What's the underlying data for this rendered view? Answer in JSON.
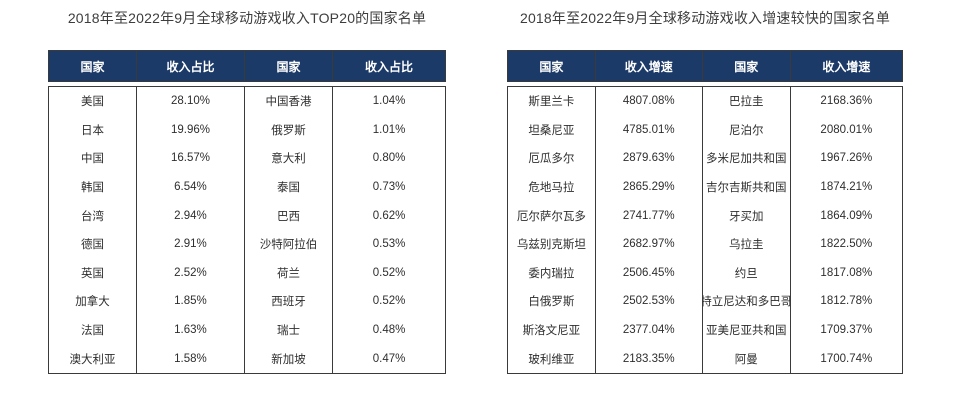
{
  "colors": {
    "header_bg": "#1c3a68",
    "header_text": "#ffffff",
    "body_text": "#2e2e2e",
    "border": "#3a3a3a",
    "title_text": "#3d3d3d",
    "page_bg": "#ffffff"
  },
  "left_table": {
    "title": "2018年至2022年9月全球移动游戏收入TOP20的国家名单",
    "headers": [
      "国家",
      "收入占比",
      "国家",
      "收入占比"
    ],
    "rows": [
      [
        "美国",
        "28.10%",
        "中国香港",
        "1.04%"
      ],
      [
        "日本",
        "19.96%",
        "俄罗斯",
        "1.01%"
      ],
      [
        "中国",
        "16.57%",
        "意大利",
        "0.80%"
      ],
      [
        "韩国",
        "6.54%",
        "泰国",
        "0.73%"
      ],
      [
        "台湾",
        "2.94%",
        "巴西",
        "0.62%"
      ],
      [
        "德国",
        "2.91%",
        "沙特阿拉伯",
        "0.53%"
      ],
      [
        "英国",
        "2.52%",
        "荷兰",
        "0.52%"
      ],
      [
        "加拿大",
        "1.85%",
        "西班牙",
        "0.52%"
      ],
      [
        "法国",
        "1.63%",
        "瑞士",
        "0.48%"
      ],
      [
        "澳大利亚",
        "1.58%",
        "新加坡",
        "0.47%"
      ]
    ]
  },
  "right_table": {
    "title": "2018年至2022年9月全球移动游戏收入增速较快的国家名单",
    "headers": [
      "国家",
      "收入增速",
      "国家",
      "收入增速"
    ],
    "rows": [
      [
        "斯里兰卡",
        "4807.08%",
        "巴拉圭",
        "2168.36%"
      ],
      [
        "坦桑尼亚",
        "4785.01%",
        "尼泊尔",
        "2080.01%"
      ],
      [
        "厄瓜多尔",
        "2879.63%",
        "多米尼加共和国",
        "1967.26%"
      ],
      [
        "危地马拉",
        "2865.29%",
        "吉尔吉斯共和国",
        "1874.21%"
      ],
      [
        "厄尔萨尔瓦多",
        "2741.77%",
        "牙买加",
        "1864.09%"
      ],
      [
        "乌兹别克斯坦",
        "2682.97%",
        "乌拉圭",
        "1822.50%"
      ],
      [
        "委内瑞拉",
        "2506.45%",
        "约旦",
        "1817.08%"
      ],
      [
        "白俄罗斯",
        "2502.53%",
        "特立尼达和多巴哥",
        "1812.78%"
      ],
      [
        "斯洛文尼亚",
        "2377.04%",
        "亚美尼亚共和国",
        "1709.37%"
      ],
      [
        "玻利维亚",
        "2183.35%",
        "阿曼",
        "1700.74%"
      ]
    ]
  },
  "chart_data": [
    {
      "type": "table",
      "title": "2018年至2022年9月全球移动游戏收入TOP20的国家名单",
      "columns": [
        "国家",
        "收入占比",
        "国家",
        "收入占比"
      ],
      "rows": [
        [
          "美国",
          "28.10%",
          "中国香港",
          "1.04%"
        ],
        [
          "日本",
          "19.96%",
          "俄罗斯",
          "1.01%"
        ],
        [
          "中国",
          "16.57%",
          "意大利",
          "0.80%"
        ],
        [
          "韩国",
          "6.54%",
          "泰国",
          "0.73%"
        ],
        [
          "台湾",
          "2.94%",
          "巴西",
          "0.62%"
        ],
        [
          "德国",
          "2.91%",
          "沙特阿拉伯",
          "0.53%"
        ],
        [
          "英国",
          "2.52%",
          "荷兰",
          "0.52%"
        ],
        [
          "加拿大",
          "1.85%",
          "西班牙",
          "0.52%"
        ],
        [
          "法国",
          "1.63%",
          "瑞士",
          "0.48%"
        ],
        [
          "澳大利亚",
          "1.58%",
          "新加坡",
          "0.47%"
        ]
      ]
    },
    {
      "type": "table",
      "title": "2018年至2022年9月全球移动游戏收入增速较快的国家名单",
      "columns": [
        "国家",
        "收入增速",
        "国家",
        "收入增速"
      ],
      "rows": [
        [
          "斯里兰卡",
          "4807.08%",
          "巴拉圭",
          "2168.36%"
        ],
        [
          "坦桑尼亚",
          "4785.01%",
          "尼泊尔",
          "2080.01%"
        ],
        [
          "厄瓜多尔",
          "2879.63%",
          "多米尼加共和国",
          "1967.26%"
        ],
        [
          "危地马拉",
          "2865.29%",
          "吉尔吉斯共和国",
          "1874.21%"
        ],
        [
          "厄尔萨尔瓦多",
          "2741.77%",
          "牙买加",
          "1864.09%"
        ],
        [
          "乌兹别克斯坦",
          "2682.97%",
          "乌拉圭",
          "1822.50%"
        ],
        [
          "委内瑞拉",
          "2506.45%",
          "约旦",
          "1817.08%"
        ],
        [
          "白俄罗斯",
          "2502.53%",
          "特立尼达和多巴哥",
          "1812.78%"
        ],
        [
          "斯洛文尼亚",
          "2377.04%",
          "亚美尼亚共和国",
          "1709.37%"
        ],
        [
          "玻利维亚",
          "2183.35%",
          "阿曼",
          "1700.74%"
        ]
      ]
    }
  ]
}
